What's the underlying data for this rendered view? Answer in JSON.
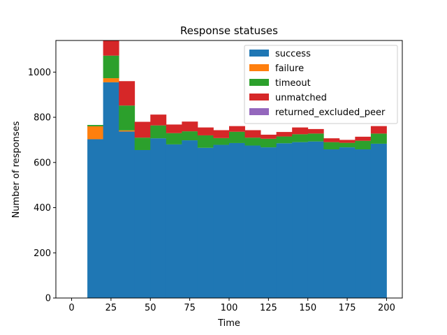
{
  "chart_data": {
    "type": "bar",
    "stacked": true,
    "title": "Response statuses",
    "xlabel": "Time",
    "ylabel": "Number of responses",
    "xlim": [
      -10,
      210
    ],
    "ylim": [
      0,
      1140
    ],
    "xticks": [
      0,
      25,
      50,
      75,
      100,
      125,
      150,
      175,
      200
    ],
    "yticks": [
      0,
      200,
      400,
      600,
      800,
      1000
    ],
    "bin_edges": [
      10,
      20,
      30,
      40,
      50,
      60,
      70,
      80,
      90,
      100,
      110,
      120,
      130,
      140,
      150,
      160,
      170,
      180,
      190,
      200
    ],
    "legend_position": "upper right",
    "grid": false,
    "series": [
      {
        "name": "success",
        "color": "#1f77b4",
        "values": [
          703,
          955,
          737,
          655,
          707,
          680,
          698,
          665,
          678,
          686,
          675,
          667,
          685,
          690,
          693,
          658,
          667,
          658,
          683
        ]
      },
      {
        "name": "failure",
        "color": "#ff7f0e",
        "values": [
          57,
          18,
          5,
          0,
          0,
          0,
          0,
          0,
          0,
          0,
          0,
          0,
          0,
          0,
          0,
          0,
          0,
          0,
          0
        ]
      },
      {
        "name": "timeout",
        "color": "#2ca02c",
        "values": [
          6,
          100,
          110,
          55,
          57,
          50,
          40,
          55,
          30,
          50,
          35,
          38,
          30,
          35,
          35,
          32,
          20,
          38,
          45
        ]
      },
      {
        "name": "unmatched",
        "color": "#d62728",
        "values": [
          0,
          67,
          108,
          70,
          48,
          38,
          43,
          35,
          35,
          25,
          33,
          18,
          20,
          30,
          20,
          17,
          13,
          18,
          33
        ]
      },
      {
        "name": "returned_excluded_peer",
        "color": "#9467bd",
        "values": [
          0,
          0,
          0,
          0,
          0,
          0,
          0,
          0,
          0,
          0,
          0,
          0,
          0,
          0,
          0,
          0,
          0,
          0,
          0
        ]
      }
    ]
  }
}
